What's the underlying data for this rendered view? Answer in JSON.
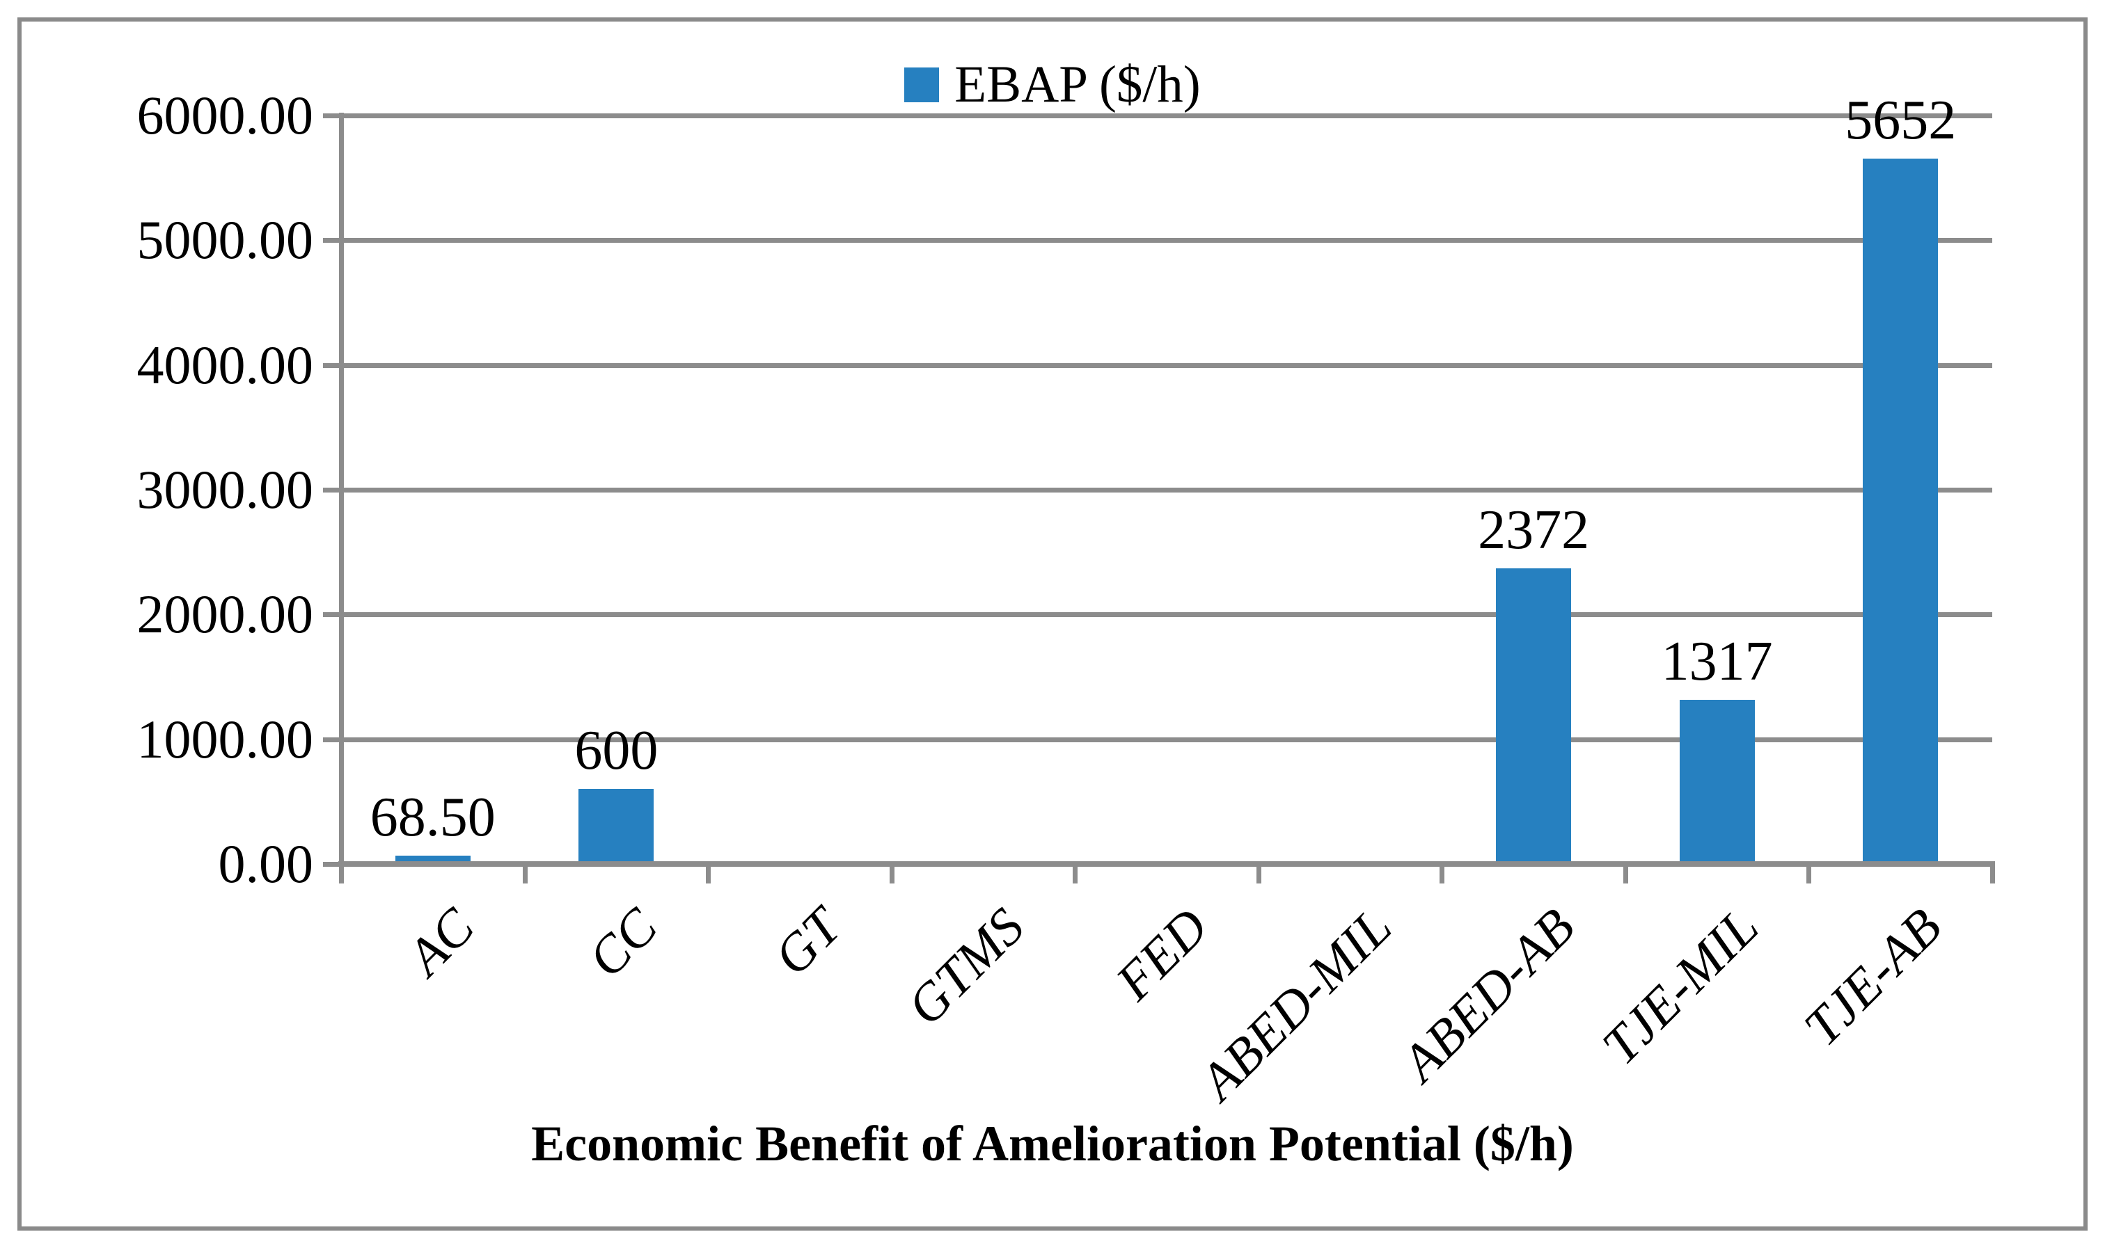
{
  "chart_data": {
    "type": "bar",
    "title": "",
    "legend": {
      "label": "EBAP ($/h)",
      "position": "top-center",
      "marker": "square"
    },
    "categories": [
      "AC",
      "CC",
      "GT",
      "GTMS",
      "FED",
      "ABED-MIL",
      "ABED-AB",
      "TJE-MIL",
      "TJE-AB"
    ],
    "series": [
      {
        "name": "EBAP ($/h)",
        "values": [
          68.5,
          600,
          0,
          0,
          0,
          0,
          2372,
          1317,
          5652
        ]
      }
    ],
    "bar_value_labels": [
      "68.50",
      "600",
      "",
      "",
      "",
      "",
      "2372",
      "1317",
      "5652"
    ],
    "xlabel": "Economic Benefit of Amelioration Potential ($/h)",
    "ylabel": "",
    "ylim": [
      0,
      6000
    ],
    "ytick_step": 1000,
    "yticks": [
      6000,
      5000,
      4000,
      3000,
      2000,
      1000,
      0
    ],
    "ytick_labels": [
      "6000.00",
      "5000.00",
      "4000.00",
      "3000.00",
      "2000.00",
      "1000.00",
      "0.00"
    ],
    "grid": true,
    "category_label_rotation_deg": 45,
    "colors": {
      "bar": "#2680C0",
      "grid": "#8C8C8C",
      "frame": "#8A8A8A",
      "text": "#000000"
    }
  }
}
